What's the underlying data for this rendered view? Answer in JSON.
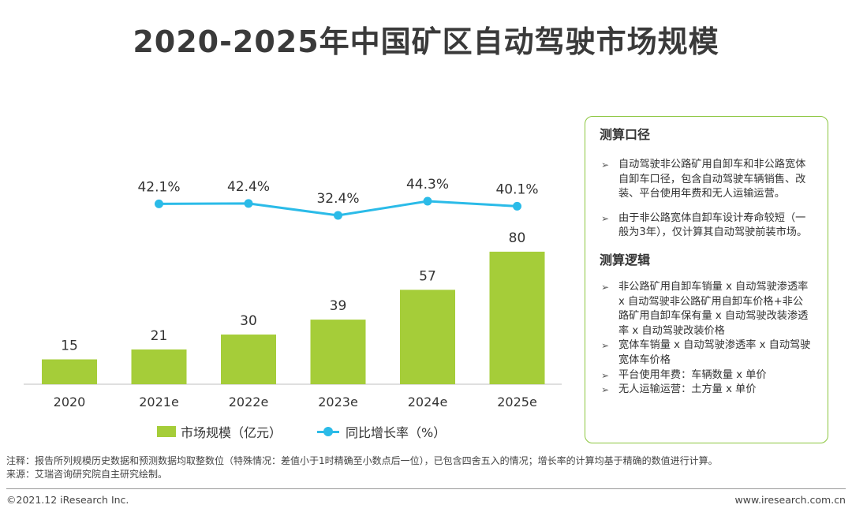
{
  "header": {
    "title": "2020-2025年中国矿区自动驾驶市场规模"
  },
  "chart_data": {
    "type": "bar",
    "categories": [
      "2020",
      "2021e",
      "2022e",
      "2023e",
      "2024e",
      "2025e"
    ],
    "series": [
      {
        "name": "市场规模（亿元）",
        "type": "bar",
        "color": "#a5cd39",
        "values": [
          15,
          21,
          30,
          39,
          57,
          80
        ]
      },
      {
        "name": "同比增长率（%）",
        "type": "line",
        "color": "#2bbbe8",
        "values": [
          null,
          42.1,
          42.4,
          32.4,
          44.3,
          40.1
        ],
        "labels": [
          "",
          "42.1%",
          "42.4%",
          "32.4%",
          "44.3%",
          "40.1%"
        ]
      }
    ],
    "legend_position": "bottom",
    "grid": false
  },
  "sidebar": {
    "heading1": "测算口径",
    "items1": [
      "自动驾驶非公路矿用自卸车和非公路宽体自卸车口径，包含自动驾驶车辆销售、改装、平台使用年费和无人运输运营。",
      "由于非公路宽体自卸车设计寿命较短（一般为3年），仅计算其自动驾驶前装市场。"
    ],
    "heading2": "测算逻辑",
    "items2": [
      "非公路矿用自卸车销量 x 自动驾驶渗透率 x 自动驾驶非公路矿用自卸车价格+非公路矿用自卸车保有量 x 自动驾驶改装渗透率 x 自动驾驶改装价格",
      "宽体车销量 x 自动驾驶渗透率 x 自动驾驶宽体车价格",
      "平台使用年费：车辆数量 x 单价",
      "无人运输运营：土方量 x 单价"
    ],
    "bullet": "➢"
  },
  "notes": {
    "note": "注释：报告所列规模历史数据和预测数据均取整数位（特殊情况：差值小于1时精确至小数点后一位），已包含四舍五入的情况；增长率的计算均基于精确的数值进行计算。",
    "source": "来源：艾瑞咨询研究院自主研究绘制。"
  },
  "footer": {
    "copyright": "©2021.12 iResearch Inc.",
    "url": "www.iresearch.com.cn"
  }
}
